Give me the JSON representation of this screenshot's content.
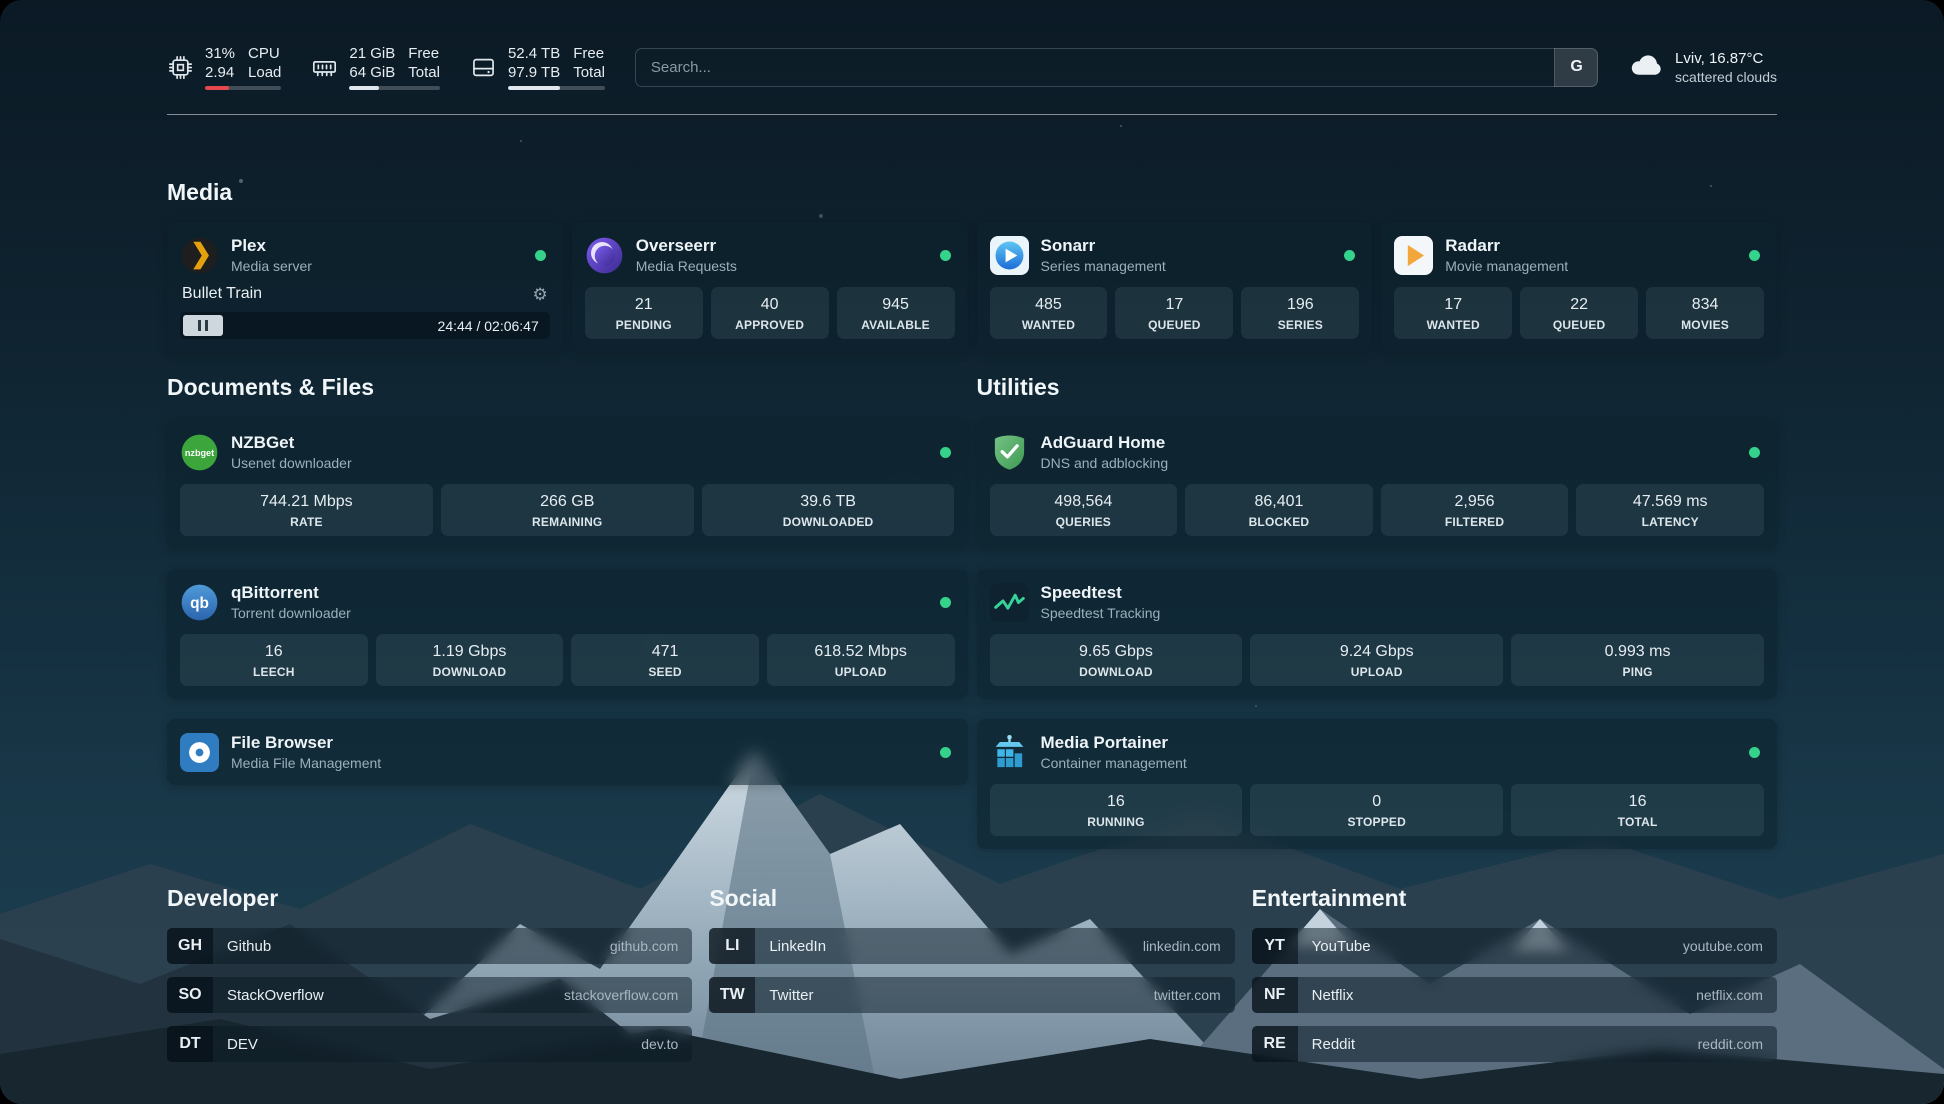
{
  "icons": {
    "gear": "⚙"
  },
  "topbar": {
    "cpu": {
      "value1": "31%",
      "value2": "2.94",
      "label1": "CPU",
      "label2": "Load",
      "bar": 31
    },
    "memory": {
      "value1": "21 GiB",
      "value2": "64 GiB",
      "label1": "Free",
      "label2": "Total",
      "bar": 33
    },
    "disk": {
      "value1": "52.4 TB",
      "value2": "97.9 TB",
      "label1": "Free",
      "label2": "Total",
      "bar": 54
    },
    "search": {
      "placeholder": "Search...",
      "button": "G"
    },
    "weather": {
      "location": "Lviv, 16.87°C",
      "condition": "scattered clouds"
    }
  },
  "sections": {
    "media": {
      "title": "Media",
      "plex": {
        "name": "Plex",
        "subtitle": "Media server",
        "now_playing": "Bullet Train",
        "time": "24:44 / 02:06:47",
        "progress": 19
      },
      "overseerr": {
        "name": "Overseerr",
        "subtitle": "Media Requests",
        "stats": [
          {
            "value": "21",
            "label": "PENDING"
          },
          {
            "value": "40",
            "label": "APPROVED"
          },
          {
            "value": "945",
            "label": "AVAILABLE"
          }
        ]
      },
      "sonarr": {
        "name": "Sonarr",
        "subtitle": "Series management",
        "stats": [
          {
            "value": "485",
            "label": "WANTED"
          },
          {
            "value": "17",
            "label": "QUEUED"
          },
          {
            "value": "196",
            "label": "SERIES"
          }
        ]
      },
      "radarr": {
        "name": "Radarr",
        "subtitle": "Movie management",
        "stats": [
          {
            "value": "17",
            "label": "WANTED"
          },
          {
            "value": "22",
            "label": "QUEUED"
          },
          {
            "value": "834",
            "label": "MOVIES"
          }
        ]
      }
    },
    "documents": {
      "title": "Documents & Files",
      "nzbget": {
        "name": "NZBGet",
        "subtitle": "Usenet downloader",
        "stats": [
          {
            "value": "744.21 Mbps",
            "label": "RATE"
          },
          {
            "value": "266 GB",
            "label": "REMAINING"
          },
          {
            "value": "39.6 TB",
            "label": "DOWNLOADED"
          }
        ]
      },
      "qbittorrent": {
        "name": "qBittorrent",
        "subtitle": "Torrent downloader",
        "stats": [
          {
            "value": "16",
            "label": "LEECH"
          },
          {
            "value": "1.19 Gbps",
            "label": "DOWNLOAD"
          },
          {
            "value": "471",
            "label": "SEED"
          },
          {
            "value": "618.52 Mbps",
            "label": "UPLOAD"
          }
        ]
      },
      "filebrowser": {
        "name": "File Browser",
        "subtitle": "Media File Management"
      }
    },
    "utilities": {
      "title": "Utilities",
      "adguard": {
        "name": "AdGuard Home",
        "subtitle": "DNS and adblocking",
        "stats": [
          {
            "value": "498,564",
            "label": "QUERIES"
          },
          {
            "value": "86,401",
            "label": "BLOCKED"
          },
          {
            "value": "2,956",
            "label": "FILTERED"
          },
          {
            "value": "47.569 ms",
            "label": "LATENCY"
          }
        ]
      },
      "speedtest": {
        "name": "Speedtest",
        "subtitle": "Speedtest Tracking",
        "stats": [
          {
            "value": "9.65 Gbps",
            "label": "DOWNLOAD"
          },
          {
            "value": "9.24 Gbps",
            "label": "UPLOAD"
          },
          {
            "value": "0.993 ms",
            "label": "PING"
          }
        ]
      },
      "portainer": {
        "name": "Media Portainer",
        "subtitle": "Container management",
        "stats": [
          {
            "value": "16",
            "label": "RUNNING"
          },
          {
            "value": "0",
            "label": "STOPPED"
          },
          {
            "value": "16",
            "label": "TOTAL"
          }
        ]
      }
    },
    "developer": {
      "title": "Developer",
      "links": [
        {
          "abbr": "GH",
          "name": "Github",
          "url": "github.com"
        },
        {
          "abbr": "SO",
          "name": "StackOverflow",
          "url": "stackoverflow.com"
        },
        {
          "abbr": "DT",
          "name": "DEV",
          "url": "dev.to"
        }
      ]
    },
    "social": {
      "title": "Social",
      "links": [
        {
          "abbr": "LI",
          "name": "LinkedIn",
          "url": "linkedin.com"
        },
        {
          "abbr": "TW",
          "name": "Twitter",
          "url": "twitter.com"
        }
      ]
    },
    "entertainment": {
      "title": "Entertainment",
      "links": [
        {
          "abbr": "YT",
          "name": "YouTube",
          "url": "youtube.com"
        },
        {
          "abbr": "NF",
          "name": "Netflix",
          "url": "netflix.com"
        },
        {
          "abbr": "RE",
          "name": "Reddit",
          "url": "reddit.com"
        }
      ]
    }
  }
}
